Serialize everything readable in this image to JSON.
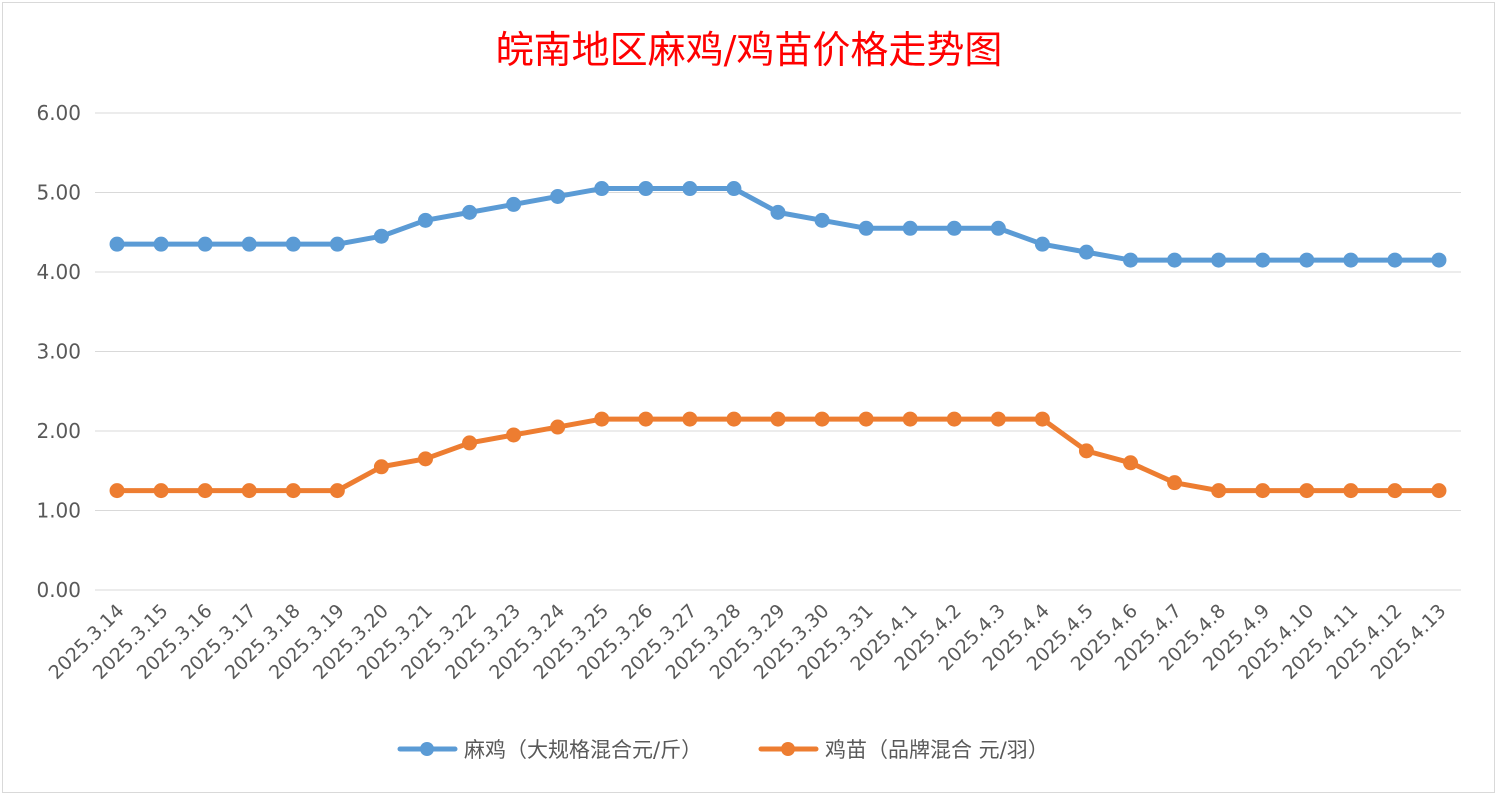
{
  "chart_data": {
    "type": "line",
    "title": "皖南地区麻鸡/鸡苗价格走势图",
    "xlabel": "",
    "ylabel": "",
    "ylim": [
      0,
      6
    ],
    "yticks": [
      "0.00",
      "1.00",
      "2.00",
      "3.00",
      "4.00",
      "5.00",
      "6.00"
    ],
    "grid": true,
    "legend_position": "bottom",
    "categories": [
      "2025.3.14",
      "2025.3.15",
      "2025.3.16",
      "2025.3.17",
      "2025.3.18",
      "2025.3.19",
      "2025.3.20",
      "2025.3.21",
      "2025.3.22",
      "2025.3.23",
      "2025.3.24",
      "2025.3.25",
      "2025.3.26",
      "2025.3.27",
      "2025.3.28",
      "2025.3.29",
      "2025.3.30",
      "2025.3.31",
      "2025.4.1",
      "2025.4.2",
      "2025.4.3",
      "2025.4.4",
      "2025.4.5",
      "2025.4.6",
      "2025.4.7",
      "2025.4.8",
      "2025.4.9",
      "2025.4.10",
      "2025.4.11",
      "2025.4.12",
      "2025.4.13"
    ],
    "series": [
      {
        "name": "麻鸡（大规格混合元/斤）",
        "color": "#5b9bd5",
        "values": [
          4.35,
          4.35,
          4.35,
          4.35,
          4.35,
          4.35,
          4.45,
          4.65,
          4.75,
          4.85,
          4.95,
          5.05,
          5.05,
          5.05,
          5.05,
          4.75,
          4.65,
          4.55,
          4.55,
          4.55,
          4.55,
          4.35,
          4.25,
          4.15,
          4.15,
          4.15,
          4.15,
          4.15,
          4.15,
          4.15,
          4.15
        ]
      },
      {
        "name": "鸡苗（品牌混合 元/羽）",
        "color": "#ed7d31",
        "values": [
          1.25,
          1.25,
          1.25,
          1.25,
          1.25,
          1.25,
          1.55,
          1.65,
          1.85,
          1.95,
          2.05,
          2.15,
          2.15,
          2.15,
          2.15,
          2.15,
          2.15,
          2.15,
          2.15,
          2.15,
          2.15,
          2.15,
          1.75,
          1.6,
          1.35,
          1.25,
          1.25,
          1.25,
          1.25,
          1.25,
          1.25
        ]
      }
    ]
  }
}
